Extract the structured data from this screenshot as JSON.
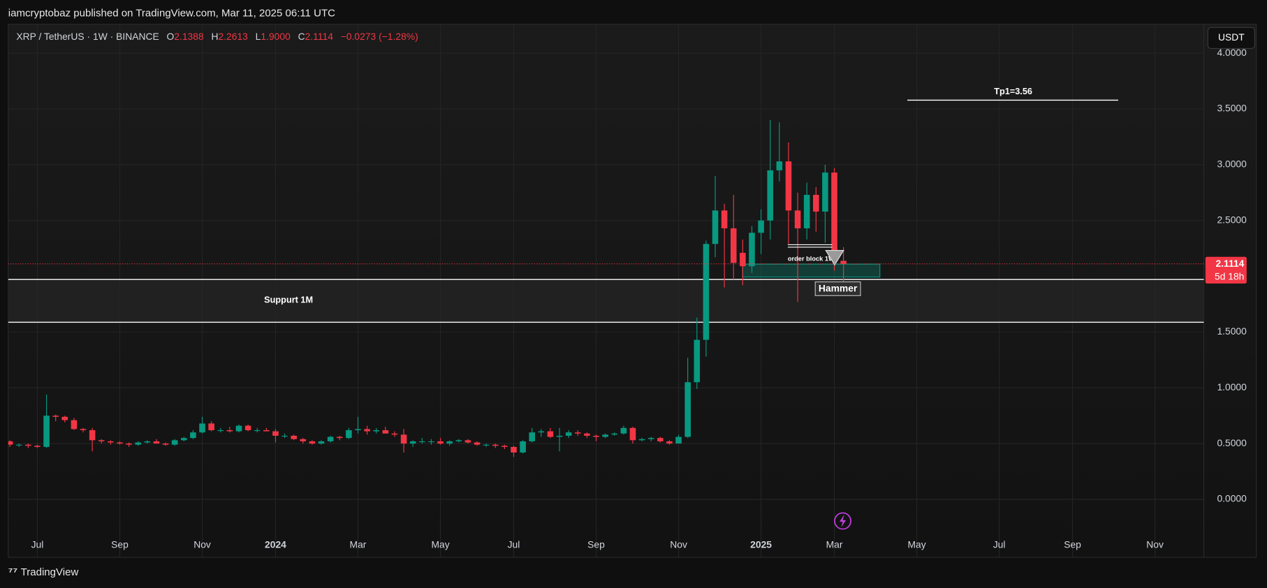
{
  "header": {
    "published": "iamcryptobaz published on TradingView.com, Mar 11, 2025 06:11 UTC"
  },
  "footer": {
    "brand": "TradingView"
  },
  "chart_data": {
    "type": "candlestick",
    "legend": {
      "symbol": "XRP / TetherUS · 1W · BINANCE",
      "fields": [
        {
          "name": "O",
          "value": "2.1388"
        },
        {
          "name": "H",
          "value": "2.2613"
        },
        {
          "name": "L",
          "value": "1.9000"
        },
        {
          "name": "C",
          "value": "2.1114"
        }
      ],
      "change": "−0.0273 (−1.28%)"
    },
    "currency_button": "USDT",
    "last_price_label": "2.1114",
    "countdown": "5d 18h",
    "annotations": {
      "tp1": "Tp1=3.56",
      "support": "Suppurt 1M",
      "order_block": "order block 1W",
      "hammer": "Hammer"
    },
    "up_color": "#089981",
    "down_color": "#f23645",
    "grid": true,
    "ylim": [
      -0.52,
      4.26
    ],
    "yticks": [
      {
        "value": 0,
        "label": "0.0000"
      },
      {
        "value": 0.5,
        "label": "0.5000"
      },
      {
        "value": 1,
        "label": "1.0000"
      },
      {
        "value": 1.5,
        "label": "1.5000"
      },
      {
        "value": 2.5,
        "label": "2.5000"
      },
      {
        "value": 3,
        "label": "3.0000"
      },
      {
        "value": 3.5,
        "label": "3.5000"
      },
      {
        "value": 4,
        "label": "4.0000"
      }
    ],
    "categories": [
      null,
      null,
      null,
      "Jul",
      null,
      null,
      null,
      null,
      null,
      null,
      null,
      null,
      "Sep",
      null,
      null,
      null,
      null,
      null,
      null,
      null,
      null,
      "Nov",
      null,
      null,
      null,
      null,
      null,
      null,
      null,
      "2024",
      null,
      null,
      null,
      null,
      null,
      null,
      null,
      null,
      "Mar",
      null,
      null,
      null,
      null,
      null,
      null,
      null,
      null,
      "May",
      null,
      null,
      null,
      null,
      null,
      null,
      null,
      "Jul",
      null,
      null,
      null,
      null,
      null,
      null,
      null,
      null,
      "Sep",
      null,
      null,
      null,
      null,
      null,
      null,
      null,
      null,
      "Nov",
      null,
      null,
      null,
      null,
      null,
      null,
      null,
      null,
      "2025",
      null,
      null,
      null,
      null,
      null,
      null,
      null,
      "Mar",
      null,
      null,
      null,
      null,
      null,
      null,
      null,
      null,
      "May",
      null,
      null,
      null,
      null,
      null,
      null,
      null,
      null,
      "Jul",
      null,
      null,
      null,
      null,
      null,
      null,
      null,
      "Sep",
      null,
      null,
      null,
      null,
      null,
      null,
      null,
      null,
      "Nov",
      null,
      null,
      null,
      null,
      null
    ],
    "open": [
      0.52,
      0.49,
      0.49,
      0.48,
      0.47,
      0.75,
      0.74,
      0.71,
      0.63,
      0.62,
      0.53,
      0.52,
      0.51,
      0.5,
      0.49,
      0.51,
      0.52,
      0.5,
      0.49,
      0.53,
      0.55,
      0.6,
      0.68,
      0.62,
      0.62,
      0.61,
      0.66,
      0.62,
      0.62,
      0.61,
      0.57,
      0.57,
      0.54,
      0.52,
      0.5,
      0.52,
      0.56,
      0.55,
      0.62,
      0.63,
      0.61,
      0.62,
      0.59,
      0.58,
      0.5,
      0.52,
      0.52,
      0.52,
      0.5,
      0.52,
      0.53,
      0.51,
      0.49,
      0.49,
      0.48,
      0.47,
      0.42,
      0.52,
      0.6,
      0.61,
      0.56,
      0.57,
      0.6,
      0.59,
      0.57,
      0.56,
      0.58,
      0.59,
      0.64,
      0.53,
      0.54,
      0.55,
      0.52,
      0.5,
      0.56,
      1.05,
      1.43,
      2.29,
      2.59,
      2.43,
      2.21,
      2.09,
      2.39,
      2.5,
      2.95,
      3.03,
      2.59,
      2.43,
      2.73,
      2.58,
      2.93,
      2.1388,
      null,
      null,
      null,
      null,
      null,
      null,
      null,
      null,
      null,
      null,
      null,
      null,
      null,
      null,
      null,
      null,
      null,
      null,
      null,
      null,
      null,
      null,
      null,
      null,
      null,
      null,
      null,
      null,
      null,
      null,
      null,
      null,
      null,
      null,
      null,
      null,
      null,
      null,
      null
    ],
    "high": [
      0.53,
      0.5,
      0.5,
      0.49,
      0.94,
      0.76,
      0.75,
      0.73,
      0.64,
      0.64,
      0.54,
      0.53,
      0.52,
      0.51,
      0.52,
      0.53,
      0.54,
      0.51,
      0.54,
      0.56,
      0.62,
      0.74,
      0.7,
      0.64,
      0.65,
      0.67,
      0.67,
      0.64,
      0.64,
      0.63,
      0.59,
      0.58,
      0.55,
      0.53,
      0.53,
      0.57,
      0.57,
      0.64,
      0.74,
      0.66,
      0.64,
      0.65,
      0.61,
      0.63,
      0.53,
      0.55,
      0.54,
      0.55,
      0.53,
      0.54,
      0.54,
      0.52,
      0.5,
      0.5,
      0.49,
      0.48,
      0.53,
      0.64,
      0.63,
      0.64,
      0.64,
      0.62,
      0.62,
      0.6,
      0.58,
      0.59,
      0.6,
      0.66,
      0.65,
      0.55,
      0.56,
      0.56,
      0.53,
      0.58,
      1.27,
      1.63,
      2.32,
      2.9,
      2.65,
      2.73,
      2.33,
      2.45,
      2.6,
      3.4,
      3.38,
      3.2,
      2.75,
      2.84,
      2.8,
      3.0,
      2.97,
      2.2613,
      null,
      null,
      null,
      null,
      null,
      null,
      null,
      null,
      null,
      null,
      null,
      null,
      null,
      null,
      null,
      null,
      null,
      null,
      null,
      null,
      null,
      null,
      null,
      null,
      null,
      null,
      null,
      null,
      null,
      null,
      null,
      null,
      null,
      null,
      null,
      null,
      null,
      null,
      null
    ],
    "low": [
      0.47,
      0.47,
      0.46,
      0.46,
      0.46,
      0.7,
      0.69,
      0.62,
      0.6,
      0.43,
      0.5,
      0.49,
      0.49,
      0.47,
      0.48,
      0.5,
      0.5,
      0.48,
      0.48,
      0.52,
      0.54,
      0.59,
      0.61,
      0.6,
      0.6,
      0.6,
      0.61,
      0.6,
      0.61,
      0.51,
      0.55,
      0.53,
      0.5,
      0.49,
      0.49,
      0.51,
      0.53,
      0.54,
      0.59,
      0.58,
      0.59,
      0.6,
      0.56,
      0.42,
      0.47,
      0.5,
      0.49,
      0.49,
      0.48,
      0.51,
      0.5,
      0.48,
      0.47,
      0.46,
      0.45,
      0.38,
      0.41,
      0.51,
      0.56,
      0.55,
      0.43,
      0.55,
      0.57,
      0.55,
      0.52,
      0.55,
      0.57,
      0.58,
      0.5,
      0.52,
      0.52,
      0.51,
      0.49,
      0.5,
      0.55,
      0.99,
      1.28,
      2.17,
      1.9,
      1.97,
      1.92,
      2.03,
      2.2,
      2.33,
      2.85,
      2.29,
      1.77,
      2.33,
      2.4,
      2.3,
      2.05,
      1.9,
      null,
      null,
      null,
      null,
      null,
      null,
      null,
      null,
      null,
      null,
      null,
      null,
      null,
      null,
      null,
      null,
      null,
      null,
      null,
      null,
      null,
      null,
      null,
      null,
      null,
      null,
      null,
      null,
      null,
      null,
      null,
      null,
      null,
      null,
      null,
      null,
      null,
      null,
      null
    ],
    "close": [
      0.49,
      0.49,
      0.48,
      0.47,
      0.75,
      0.74,
      0.71,
      0.63,
      0.62,
      0.53,
      0.52,
      0.51,
      0.5,
      0.49,
      0.51,
      0.52,
      0.5,
      0.49,
      0.53,
      0.55,
      0.6,
      0.68,
      0.62,
      0.62,
      0.61,
      0.66,
      0.62,
      0.62,
      0.61,
      0.57,
      0.57,
      0.54,
      0.52,
      0.5,
      0.52,
      0.56,
      0.55,
      0.62,
      0.63,
      0.61,
      0.62,
      0.59,
      0.58,
      0.5,
      0.52,
      0.52,
      0.52,
      0.5,
      0.52,
      0.53,
      0.51,
      0.49,
      0.49,
      0.48,
      0.47,
      0.42,
      0.52,
      0.6,
      0.61,
      0.56,
      0.57,
      0.6,
      0.59,
      0.57,
      0.56,
      0.58,
      0.59,
      0.64,
      0.53,
      0.54,
      0.55,
      0.52,
      0.5,
      0.56,
      1.05,
      1.43,
      2.29,
      2.59,
      2.43,
      2.12,
      2.09,
      2.39,
      2.5,
      2.95,
      3.03,
      2.59,
      2.43,
      2.73,
      2.58,
      2.93,
      2.1387,
      2.1114,
      null,
      null,
      null,
      null,
      null,
      null,
      null,
      null,
      null,
      null,
      null,
      null,
      null,
      null,
      null,
      null,
      null,
      null,
      null,
      null,
      null,
      null,
      null,
      null,
      null,
      null,
      null,
      null,
      null,
      null,
      null,
      null,
      null,
      null,
      null,
      null,
      null,
      null,
      null
    ]
  }
}
